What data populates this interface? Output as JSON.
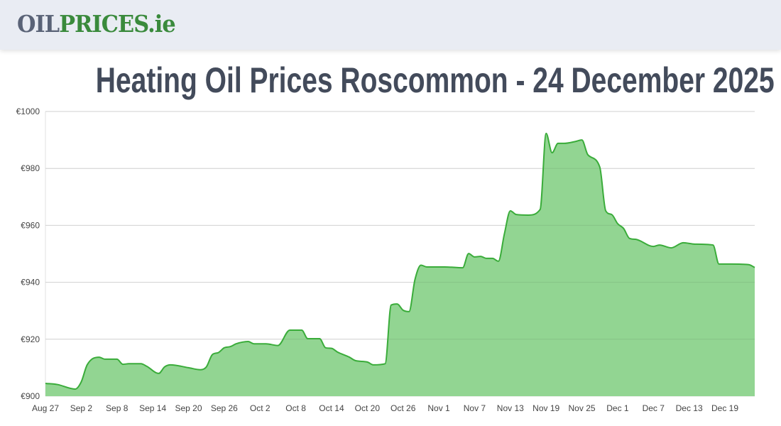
{
  "header": {
    "logo_part1": "OIL",
    "logo_part2": "PRICES.ie"
  },
  "page_title": "Heating Oil Prices Roscommon - 24 December 2025",
  "colors": {
    "line": "#3aac3a",
    "fill": "#92d592",
    "grid": "#e2e2e2",
    "logo_dark": "#5a6377",
    "logo_green": "#3a8a3c"
  },
  "chart_data": {
    "type": "area",
    "title": "",
    "xlabel": "",
    "ylabel": "",
    "ylim": [
      900,
      1000
    ],
    "xlim": [
      "2025-08-27",
      "2025-12-24"
    ],
    "grid": true,
    "legend": "none",
    "y_ticks": [
      {
        "value": 900,
        "label": "€900"
      },
      {
        "value": 920,
        "label": "€920"
      },
      {
        "value": 940,
        "label": "€940"
      },
      {
        "value": 960,
        "label": "€960"
      },
      {
        "value": 980,
        "label": "€980"
      },
      {
        "value": 1000,
        "label": "€1000"
      }
    ],
    "x_ticks": [
      {
        "date": "2025-08-27",
        "label": "Aug 27"
      },
      {
        "date": "2025-09-02",
        "label": "Sep 2"
      },
      {
        "date": "2025-09-08",
        "label": "Sep 8"
      },
      {
        "date": "2025-09-14",
        "label": "Sep 14"
      },
      {
        "date": "2025-09-20",
        "label": "Sep 20"
      },
      {
        "date": "2025-09-26",
        "label": "Sep 26"
      },
      {
        "date": "2025-10-02",
        "label": "Oct 2"
      },
      {
        "date": "2025-10-08",
        "label": "Oct 8"
      },
      {
        "date": "2025-10-14",
        "label": "Oct 14"
      },
      {
        "date": "2025-10-20",
        "label": "Oct 20"
      },
      {
        "date": "2025-10-26",
        "label": "Oct 26"
      },
      {
        "date": "2025-11-01",
        "label": "Nov 1"
      },
      {
        "date": "2025-11-07",
        "label": "Nov 7"
      },
      {
        "date": "2025-11-13",
        "label": "Nov 13"
      },
      {
        "date": "2025-11-19",
        "label": "Nov 19"
      },
      {
        "date": "2025-11-25",
        "label": "Nov 25"
      },
      {
        "date": "2025-12-01",
        "label": "Dec 1"
      },
      {
        "date": "2025-12-07",
        "label": "Dec 7"
      },
      {
        "date": "2025-12-13",
        "label": "Dec 13"
      },
      {
        "date": "2025-12-19",
        "label": "Dec 19"
      }
    ],
    "points": [
      [
        "2025-08-27",
        904.5
      ],
      [
        "2025-08-29",
        904.1
      ],
      [
        "2025-09-01",
        902.5
      ],
      [
        "2025-09-02",
        905.0
      ],
      [
        "2025-09-03",
        911.0
      ],
      [
        "2025-09-05",
        913.7
      ],
      [
        "2025-09-06",
        913.0
      ],
      [
        "2025-09-08",
        913.0
      ],
      [
        "2025-09-09",
        911.2
      ],
      [
        "2025-09-10",
        911.4
      ],
      [
        "2025-09-12",
        911.4
      ],
      [
        "2025-09-13",
        910.5
      ],
      [
        "2025-09-15",
        908.0
      ],
      [
        "2025-09-16",
        910.3
      ],
      [
        "2025-09-17",
        911.0
      ],
      [
        "2025-09-20",
        910.0
      ],
      [
        "2025-09-22",
        909.3
      ],
      [
        "2025-09-23",
        910.3
      ],
      [
        "2025-09-24",
        914.6
      ],
      [
        "2025-09-25",
        915.3
      ],
      [
        "2025-09-26",
        917.0
      ],
      [
        "2025-09-27",
        917.4
      ],
      [
        "2025-09-28",
        918.4
      ],
      [
        "2025-09-30",
        919.2
      ],
      [
        "2025-10-01",
        918.4
      ],
      [
        "2025-10-03",
        918.4
      ],
      [
        "2025-10-05",
        917.8
      ],
      [
        "2025-10-07",
        923.2
      ],
      [
        "2025-10-08",
        923.2
      ],
      [
        "2025-10-09",
        923.2
      ],
      [
        "2025-10-10",
        920.2
      ],
      [
        "2025-10-12",
        920.2
      ],
      [
        "2025-10-13",
        917.0
      ],
      [
        "2025-10-14",
        916.8
      ],
      [
        "2025-10-15",
        915.5
      ],
      [
        "2025-10-17",
        913.7
      ],
      [
        "2025-10-18",
        912.5
      ],
      [
        "2025-10-20",
        912.0
      ],
      [
        "2025-10-21",
        911.0
      ],
      [
        "2025-10-23",
        911.4
      ],
      [
        "2025-10-24",
        932.0
      ],
      [
        "2025-10-25",
        932.4
      ],
      [
        "2025-10-26",
        930.2
      ],
      [
        "2025-10-27",
        929.7
      ],
      [
        "2025-10-28",
        941.0
      ],
      [
        "2025-10-29",
        946.0
      ],
      [
        "2025-10-30",
        945.4
      ],
      [
        "2025-11-02",
        945.4
      ],
      [
        "2025-11-05",
        945.1
      ],
      [
        "2025-11-06",
        950.1
      ],
      [
        "2025-11-07",
        948.9
      ],
      [
        "2025-11-08",
        949.1
      ],
      [
        "2025-11-09",
        948.4
      ],
      [
        "2025-11-10",
        948.4
      ],
      [
        "2025-11-11",
        947.4
      ],
      [
        "2025-11-12",
        957.0
      ],
      [
        "2025-11-13",
        965.1
      ],
      [
        "2025-11-14",
        963.8
      ],
      [
        "2025-11-16",
        963.6
      ],
      [
        "2025-11-18",
        965.6
      ],
      [
        "2025-11-19",
        992.3
      ],
      [
        "2025-11-20",
        985.5
      ],
      [
        "2025-11-21",
        988.8
      ],
      [
        "2025-11-22",
        988.8
      ],
      [
        "2025-11-24",
        989.5
      ],
      [
        "2025-11-25",
        990.0
      ],
      [
        "2025-11-26",
        984.8
      ],
      [
        "2025-11-28",
        980.5
      ],
      [
        "2025-11-29",
        965.1
      ],
      [
        "2025-11-30",
        963.8
      ],
      [
        "2025-12-01",
        960.6
      ],
      [
        "2025-12-02",
        958.9
      ],
      [
        "2025-12-03",
        955.4
      ],
      [
        "2025-12-04",
        955.1
      ],
      [
        "2025-12-07",
        952.6
      ],
      [
        "2025-12-08",
        953.1
      ],
      [
        "2025-12-10",
        952.1
      ],
      [
        "2025-12-12",
        953.9
      ],
      [
        "2025-12-14",
        953.4
      ],
      [
        "2025-12-17",
        953.1
      ],
      [
        "2025-12-18",
        946.4
      ],
      [
        "2025-12-20",
        946.4
      ],
      [
        "2025-12-23",
        946.2
      ],
      [
        "2025-12-24",
        945.2
      ]
    ]
  }
}
